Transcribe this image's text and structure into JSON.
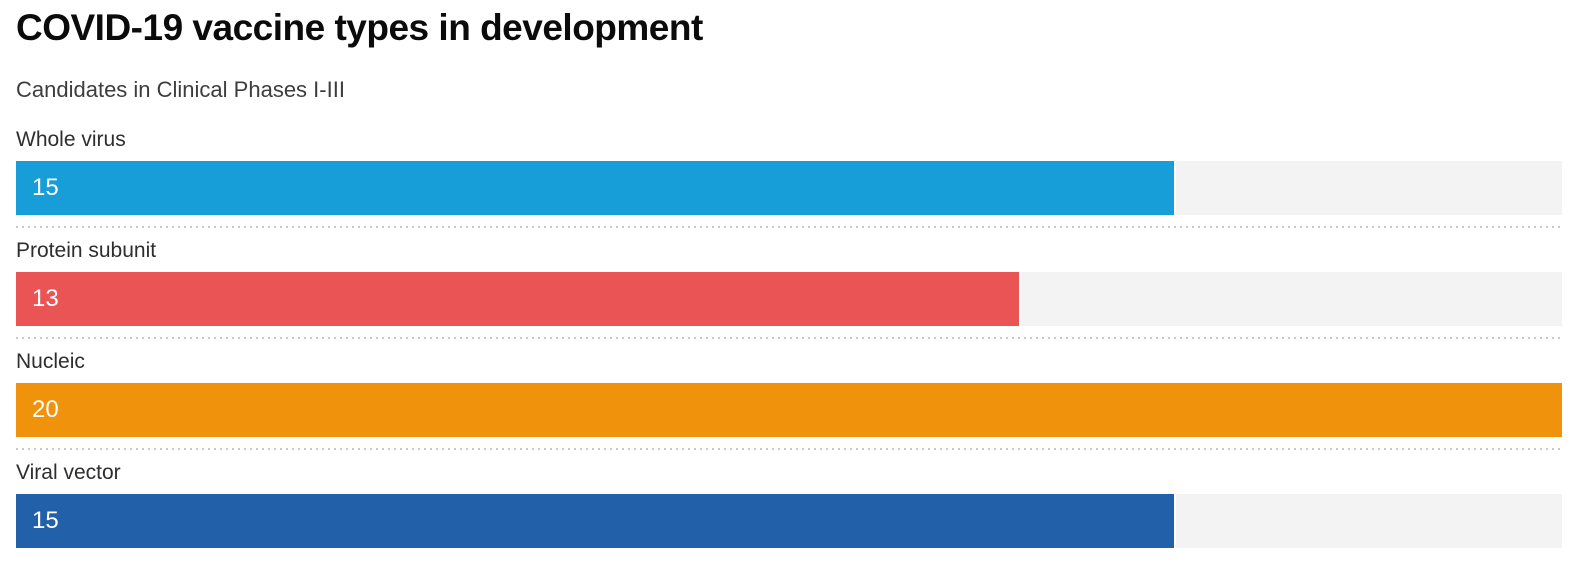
{
  "chart": {
    "title": "COVID-19 vaccine types in development",
    "subtitle": "Candidates in Clinical Phases I-III"
  },
  "chart_data": {
    "type": "bar",
    "orientation": "horizontal",
    "title": "COVID-19 vaccine types in development",
    "subtitle": "Candidates in Clinical Phases I-III",
    "categories": [
      "Whole virus",
      "Protein subunit",
      "Nucleic",
      "Viral vector"
    ],
    "values": [
      15,
      13,
      20,
      15
    ],
    "xlim": [
      0,
      20
    ],
    "grid": false,
    "legend": false,
    "value_labels_inside_bar": true,
    "bar_colors": [
      "#179dd8",
      "#ea5455",
      "#f1920d",
      "#2261aa"
    ],
    "track_color": "#f3f3f3",
    "separator_color": "#c9c9c9",
    "value_label_color": "#ffffff"
  }
}
